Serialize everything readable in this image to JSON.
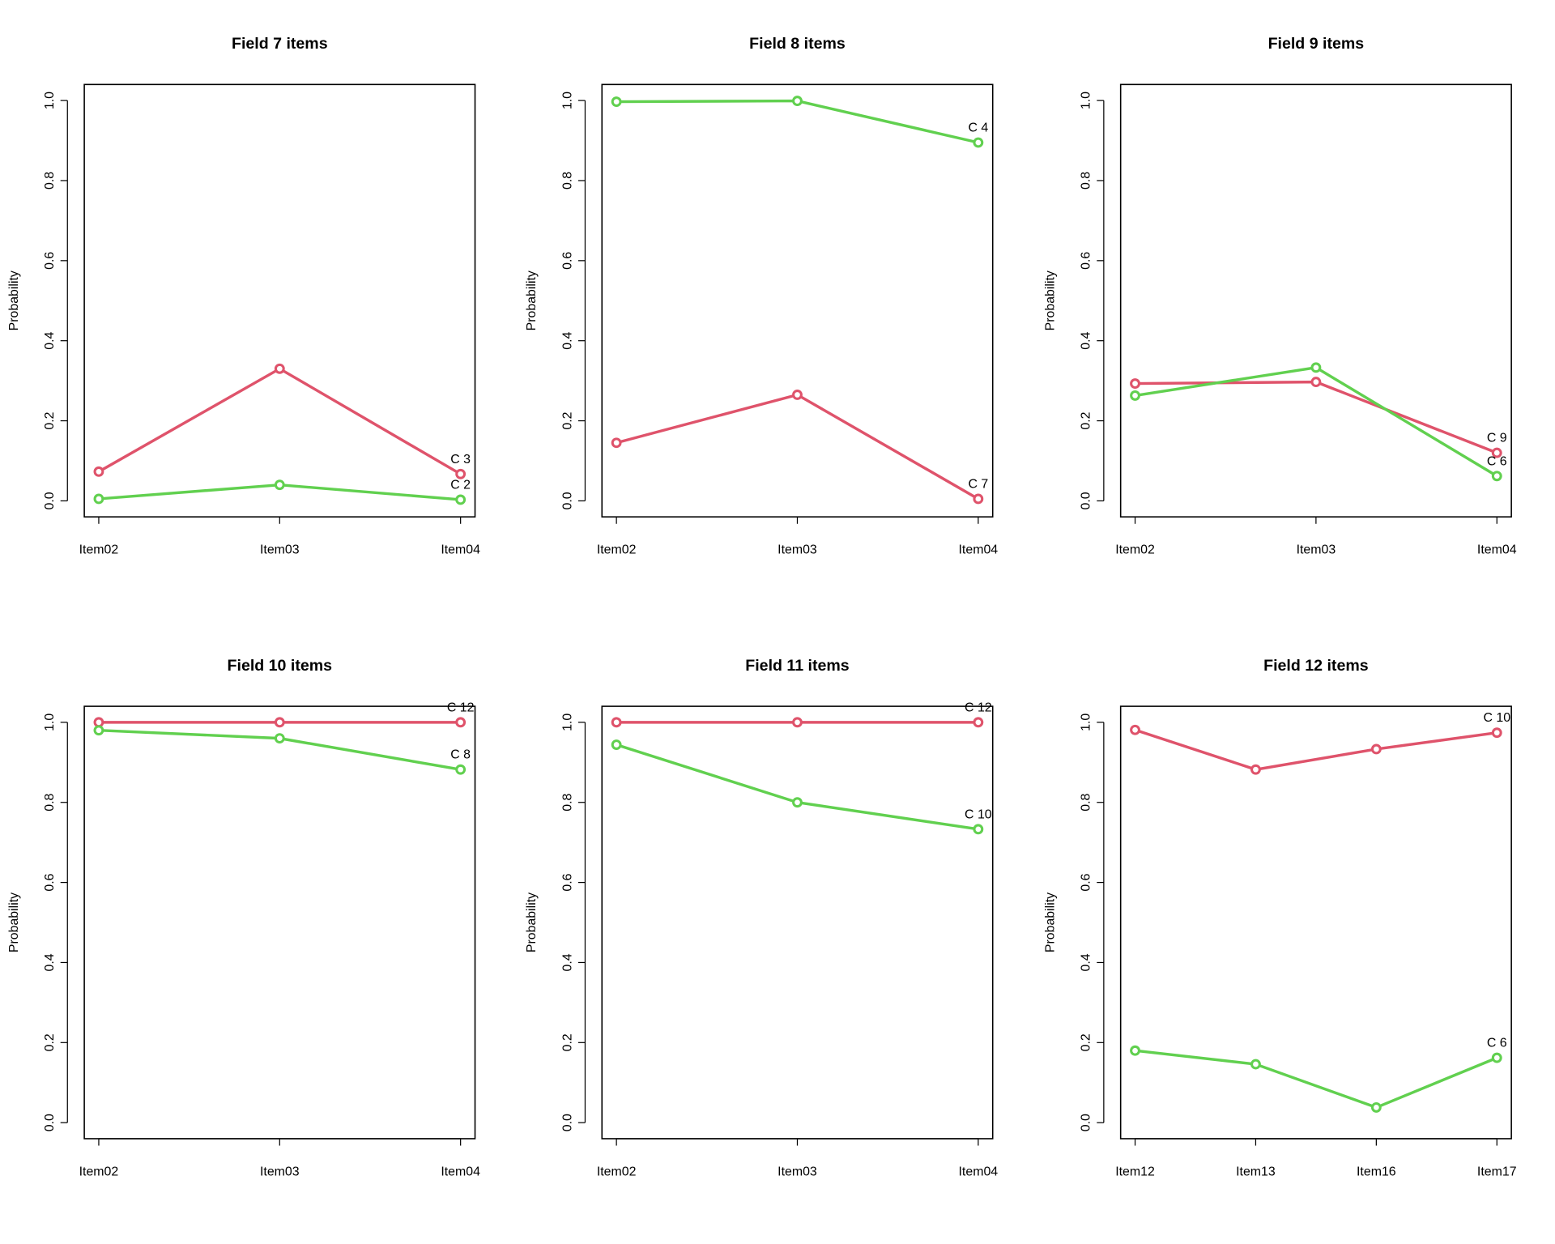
{
  "chart_data": [
    {
      "type": "line",
      "title": "Field 7 items",
      "ylabel": "Probability",
      "categories": [
        "Item02",
        "Item03",
        "Item04"
      ],
      "series": [
        {
          "label": "C 3",
          "color": "#DF536B",
          "values": [
            0.073,
            0.33,
            0.067
          ]
        },
        {
          "label": "C 2",
          "color": "#61D04F",
          "values": [
            0.005,
            0.04,
            0.003
          ]
        }
      ],
      "ylim": [
        -0.04,
        1.04
      ],
      "yticks": [
        {
          "value": 0,
          "label": "0.0"
        },
        {
          "value": 0.2,
          "label": "0.2"
        },
        {
          "value": 0.4,
          "label": "0.4"
        },
        {
          "value": 0.6,
          "label": "0.6"
        },
        {
          "value": 0.8,
          "label": "0.8"
        },
        {
          "value": 1,
          "label": "1.0"
        }
      ]
    },
    {
      "type": "line",
      "title": "Field 8 items",
      "ylabel": "Probability",
      "categories": [
        "Item02",
        "Item03",
        "Item04"
      ],
      "series": [
        {
          "label": "C 4",
          "color": "#61D04F",
          "values": [
            0.997,
            0.999,
            0.895
          ]
        },
        {
          "label": "C 7",
          "color": "#DF536B",
          "values": [
            0.145,
            0.265,
            0.005
          ]
        }
      ],
      "ylim": [
        -0.04,
        1.04
      ],
      "yticks": [
        {
          "value": 0,
          "label": "0.0"
        },
        {
          "value": 0.2,
          "label": "0.2"
        },
        {
          "value": 0.4,
          "label": "0.4"
        },
        {
          "value": 0.6,
          "label": "0.6"
        },
        {
          "value": 0.8,
          "label": "0.8"
        },
        {
          "value": 1,
          "label": "1.0"
        }
      ]
    },
    {
      "type": "line",
      "title": "Field 9 items",
      "ylabel": "Probability",
      "categories": [
        "Item02",
        "Item03",
        "Item04"
      ],
      "series": [
        {
          "label": "C 9",
          "color": "#DF536B",
          "values": [
            0.293,
            0.297,
            0.12
          ]
        },
        {
          "label": "C 6",
          "color": "#61D04F",
          "values": [
            0.263,
            0.333,
            0.062
          ]
        }
      ],
      "ylim": [
        -0.04,
        1.04
      ],
      "yticks": [
        {
          "value": 0,
          "label": "0.0"
        },
        {
          "value": 0.2,
          "label": "0.2"
        },
        {
          "value": 0.4,
          "label": "0.4"
        },
        {
          "value": 0.6,
          "label": "0.6"
        },
        {
          "value": 0.8,
          "label": "0.8"
        },
        {
          "value": 1,
          "label": "1.0"
        }
      ]
    },
    {
      "type": "line",
      "title": "Field 10 items",
      "ylabel": "Probability",
      "categories": [
        "Item02",
        "Item03",
        "Item04"
      ],
      "series": [
        {
          "label": "C 12",
          "color": "#DF536B",
          "values": [
            1,
            1,
            1
          ]
        },
        {
          "label": "C 8",
          "color": "#61D04F",
          "values": [
            0.98,
            0.96,
            0.882
          ]
        }
      ],
      "ylim": [
        -0.04,
        1.04
      ],
      "yticks": [
        {
          "value": 0,
          "label": "0.0"
        },
        {
          "value": 0.2,
          "label": "0.2"
        },
        {
          "value": 0.4,
          "label": "0.4"
        },
        {
          "value": 0.6,
          "label": "0.6"
        },
        {
          "value": 0.8,
          "label": "0.8"
        },
        {
          "value": 1,
          "label": "1.0"
        }
      ]
    },
    {
      "type": "line",
      "title": "Field 11 items",
      "ylabel": "Probability",
      "categories": [
        "Item02",
        "Item03",
        "Item04"
      ],
      "series": [
        {
          "label": "C 12",
          "color": "#DF536B",
          "values": [
            1,
            1,
            1
          ]
        },
        {
          "label": "C 10",
          "color": "#61D04F",
          "values": [
            0.944,
            0.8,
            0.733
          ]
        }
      ],
      "ylim": [
        -0.04,
        1.04
      ],
      "yticks": [
        {
          "value": 0,
          "label": "0.0"
        },
        {
          "value": 0.2,
          "label": "0.2"
        },
        {
          "value": 0.4,
          "label": "0.4"
        },
        {
          "value": 0.6,
          "label": "0.6"
        },
        {
          "value": 0.8,
          "label": "0.8"
        },
        {
          "value": 1,
          "label": "1.0"
        }
      ]
    },
    {
      "type": "line",
      "title": "Field 12 items",
      "ylabel": "Probability",
      "categories": [
        "Item12",
        "Item13",
        "Item16",
        "Item17"
      ],
      "series": [
        {
          "label": "C 10",
          "color": "#DF536B",
          "values": [
            0.981,
            0.882,
            0.933,
            0.974
          ]
        },
        {
          "label": "C 6",
          "color": "#61D04F",
          "values": [
            0.18,
            0.146,
            0.038,
            0.162
          ]
        }
      ],
      "ylim": [
        -0.04,
        1.04
      ],
      "yticks": [
        {
          "value": 0,
          "label": "0.0"
        },
        {
          "value": 0.2,
          "label": "0.2"
        },
        {
          "value": 0.4,
          "label": "0.4"
        },
        {
          "value": 0.6,
          "label": "0.6"
        },
        {
          "value": 0.8,
          "label": "0.8"
        },
        {
          "value": 1,
          "label": "1.0"
        }
      ]
    }
  ]
}
